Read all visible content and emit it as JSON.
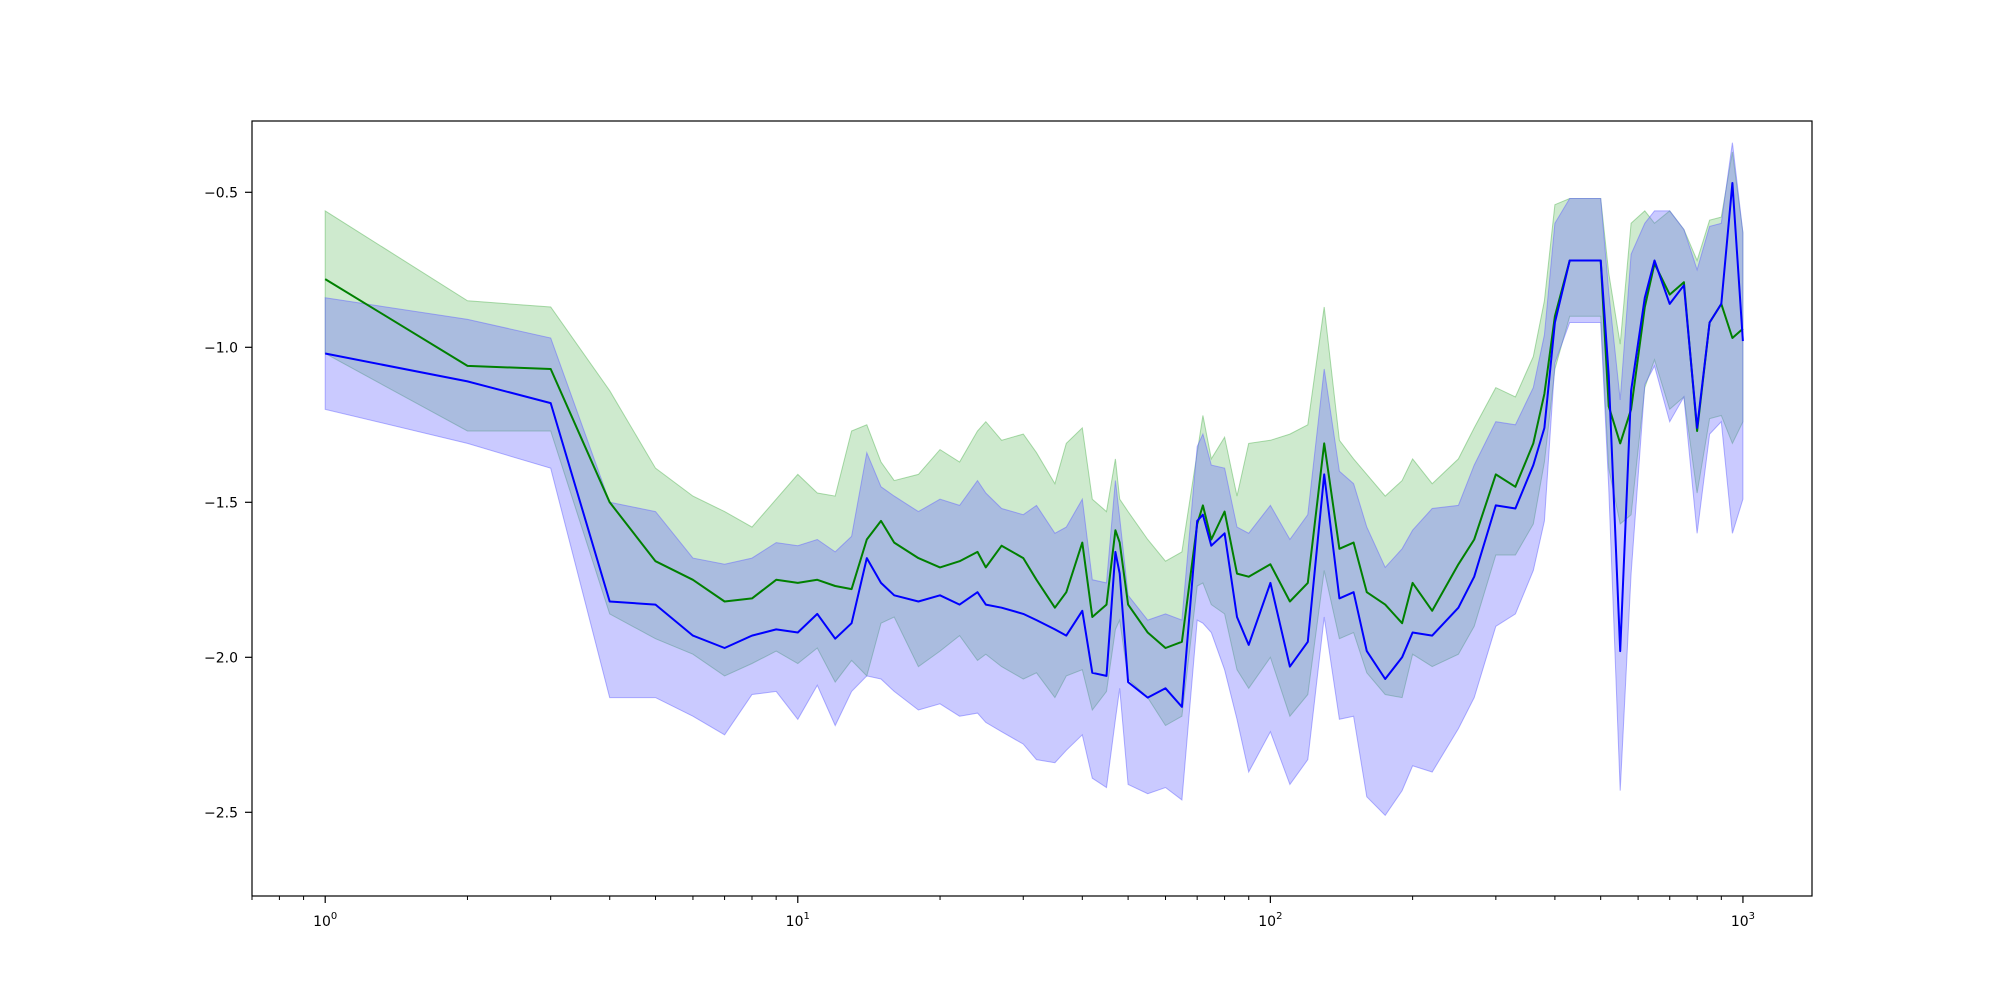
{
  "chart_data": {
    "type": "line",
    "title": "",
    "xlabel": "",
    "ylabel": "",
    "xscale": "log",
    "xlim": [
      0.7,
      1400
    ],
    "ylim": [
      -2.77,
      -0.27
    ],
    "grid": false,
    "legend": "none",
    "x_ticks": [
      {
        "value": 1,
        "base": "10",
        "exp": "0"
      },
      {
        "value": 10,
        "base": "10",
        "exp": "1"
      },
      {
        "value": 100,
        "base": "10",
        "exp": "2"
      },
      {
        "value": 1000,
        "base": "10",
        "exp": "3"
      }
    ],
    "y_ticks": [
      {
        "value": -0.5,
        "label": "−0.5"
      },
      {
        "value": -1.0,
        "label": "−1.0"
      },
      {
        "value": -1.5,
        "label": "−1.5"
      },
      {
        "value": -2.0,
        "label": "−2.0"
      },
      {
        "value": -2.5,
        "label": "−2.5"
      }
    ],
    "series": [
      {
        "color": "#008000",
        "band_color": "#5cb85c",
        "band_opacity": 0.3,
        "x": [
          1,
          2,
          3,
          4,
          5,
          6,
          7,
          8,
          9,
          10,
          11,
          12,
          13,
          14,
          15,
          16,
          18,
          20,
          22,
          24,
          25,
          27,
          30,
          32,
          35,
          37,
          40,
          42,
          45,
          47,
          48,
          50,
          55,
          60,
          65,
          70,
          72,
          75,
          80,
          85,
          90,
          100,
          110,
          120,
          130,
          140,
          150,
          160,
          175,
          190,
          200,
          220,
          250,
          270,
          300,
          330,
          360,
          380,
          400,
          430,
          470,
          500,
          520,
          550,
          580,
          620,
          650,
          700,
          750,
          800,
          850,
          900,
          950,
          1000
        ],
        "y": [
          -0.78,
          -1.06,
          -1.07,
          -1.5,
          -1.69,
          -1.75,
          -1.82,
          -1.81,
          -1.75,
          -1.76,
          -1.75,
          -1.77,
          -1.78,
          -1.62,
          -1.56,
          -1.63,
          -1.68,
          -1.71,
          -1.69,
          -1.66,
          -1.71,
          -1.64,
          -1.68,
          -1.75,
          -1.84,
          -1.79,
          -1.63,
          -1.87,
          -1.83,
          -1.59,
          -1.63,
          -1.83,
          -1.92,
          -1.97,
          -1.95,
          -1.57,
          -1.51,
          -1.62,
          -1.53,
          -1.73,
          -1.74,
          -1.7,
          -1.82,
          -1.76,
          -1.31,
          -1.65,
          -1.63,
          -1.79,
          -1.83,
          -1.89,
          -1.76,
          -1.85,
          -1.7,
          -1.62,
          -1.41,
          -1.45,
          -1.31,
          -1.15,
          -0.9,
          -0.72,
          -0.72,
          -0.72,
          -1.19,
          -1.31,
          -1.2,
          -0.87,
          -0.73,
          -0.83,
          -0.79,
          -1.27,
          -0.92,
          -0.86,
          -0.97,
          -0.94
        ],
        "upper": [
          -0.56,
          -0.85,
          -0.87,
          -1.14,
          -1.39,
          -1.48,
          -1.53,
          -1.58,
          -1.49,
          -1.41,
          -1.47,
          -1.48,
          -1.27,
          -1.25,
          -1.37,
          -1.43,
          -1.41,
          -1.33,
          -1.37,
          -1.27,
          -1.24,
          -1.3,
          -1.28,
          -1.34,
          -1.44,
          -1.31,
          -1.26,
          -1.49,
          -1.53,
          -1.36,
          -1.49,
          -1.53,
          -1.62,
          -1.69,
          -1.66,
          -1.34,
          -1.22,
          -1.36,
          -1.29,
          -1.48,
          -1.31,
          -1.3,
          -1.28,
          -1.25,
          -0.87,
          -1.3,
          -1.36,
          -1.41,
          -1.48,
          -1.43,
          -1.36,
          -1.44,
          -1.36,
          -1.26,
          -1.13,
          -1.16,
          -1.03,
          -0.85,
          -0.54,
          -0.52,
          -0.52,
          -0.52,
          -0.76,
          -0.99,
          -0.6,
          -0.56,
          -0.6,
          -0.56,
          -0.62,
          -0.72,
          -0.59,
          -0.58,
          -0.37,
          -0.63
        ],
        "lower": [
          -1.02,
          -1.27,
          -1.27,
          -1.86,
          -1.94,
          -1.99,
          -2.06,
          -2.02,
          -1.98,
          -2.02,
          -1.97,
          -2.08,
          -2.01,
          -2.06,
          -1.89,
          -1.87,
          -2.03,
          -1.98,
          -1.93,
          -2.01,
          -1.99,
          -2.03,
          -2.07,
          -2.05,
          -2.13,
          -2.06,
          -2.04,
          -2.17,
          -2.11,
          -1.91,
          -1.88,
          -2.07,
          -2.13,
          -2.22,
          -2.19,
          -1.77,
          -1.76,
          -1.83,
          -1.86,
          -2.04,
          -2.1,
          -2.0,
          -2.19,
          -2.12,
          -1.72,
          -1.94,
          -1.92,
          -2.05,
          -2.12,
          -2.13,
          -1.99,
          -2.03,
          -1.99,
          -1.9,
          -1.67,
          -1.67,
          -1.57,
          -1.37,
          -1.07,
          -0.9,
          -0.9,
          -0.9,
          -1.39,
          -1.57,
          -1.54,
          -1.13,
          -1.04,
          -1.2,
          -1.16,
          -1.47,
          -1.23,
          -1.22,
          -1.31,
          -1.24
        ]
      },
      {
        "color": "#0000ff",
        "band_color": "#6666ff",
        "band_opacity": 0.35,
        "x": [
          1,
          2,
          3,
          4,
          5,
          6,
          7,
          8,
          9,
          10,
          11,
          12,
          13,
          14,
          15,
          16,
          18,
          20,
          22,
          24,
          25,
          27,
          30,
          32,
          35,
          37,
          40,
          42,
          45,
          47,
          48,
          50,
          55,
          60,
          65,
          70,
          72,
          75,
          80,
          85,
          90,
          100,
          110,
          120,
          130,
          140,
          150,
          160,
          175,
          190,
          200,
          220,
          250,
          270,
          300,
          330,
          360,
          380,
          400,
          430,
          470,
          500,
          520,
          550,
          580,
          620,
          650,
          700,
          750,
          800,
          850,
          900,
          950,
          1000
        ],
        "y": [
          -1.02,
          -1.11,
          -1.18,
          -1.82,
          -1.83,
          -1.93,
          -1.97,
          -1.93,
          -1.91,
          -1.92,
          -1.86,
          -1.94,
          -1.89,
          -1.68,
          -1.76,
          -1.8,
          -1.82,
          -1.8,
          -1.83,
          -1.79,
          -1.83,
          -1.84,
          -1.86,
          -1.88,
          -1.91,
          -1.93,
          -1.85,
          -2.05,
          -2.06,
          -1.66,
          -1.73,
          -2.08,
          -2.13,
          -2.1,
          -2.16,
          -1.56,
          -1.54,
          -1.64,
          -1.6,
          -1.87,
          -1.96,
          -1.76,
          -2.03,
          -1.95,
          -1.41,
          -1.81,
          -1.79,
          -1.98,
          -2.07,
          -2.0,
          -1.92,
          -1.93,
          -1.84,
          -1.74,
          -1.51,
          -1.52,
          -1.38,
          -1.26,
          -0.92,
          -0.72,
          -0.72,
          -0.72,
          -1.09,
          -1.98,
          -1.14,
          -0.84,
          -0.72,
          -0.86,
          -0.8,
          -1.26,
          -0.92,
          -0.86,
          -0.47,
          -0.98
        ],
        "upper": [
          -0.84,
          -0.91,
          -0.97,
          -1.5,
          -1.53,
          -1.68,
          -1.7,
          -1.68,
          -1.63,
          -1.64,
          -1.62,
          -1.66,
          -1.61,
          -1.34,
          -1.45,
          -1.48,
          -1.53,
          -1.49,
          -1.51,
          -1.43,
          -1.47,
          -1.52,
          -1.54,
          -1.51,
          -1.6,
          -1.58,
          -1.49,
          -1.75,
          -1.76,
          -1.43,
          -1.55,
          -1.8,
          -1.88,
          -1.86,
          -1.88,
          -1.32,
          -1.28,
          -1.38,
          -1.39,
          -1.58,
          -1.6,
          -1.51,
          -1.62,
          -1.54,
          -1.07,
          -1.4,
          -1.44,
          -1.58,
          -1.71,
          -1.65,
          -1.59,
          -1.52,
          -1.51,
          -1.38,
          -1.24,
          -1.25,
          -1.13,
          -0.96,
          -0.6,
          -0.52,
          -0.52,
          -0.52,
          -0.82,
          -1.17,
          -0.7,
          -0.6,
          -0.56,
          -0.56,
          -0.62,
          -0.75,
          -0.61,
          -0.6,
          -0.34,
          -0.63
        ],
        "lower": [
          -1.2,
          -1.31,
          -1.39,
          -2.13,
          -2.13,
          -2.19,
          -2.25,
          -2.12,
          -2.11,
          -2.2,
          -2.09,
          -2.22,
          -2.11,
          -2.06,
          -2.07,
          -2.11,
          -2.17,
          -2.15,
          -2.19,
          -2.18,
          -2.21,
          -2.24,
          -2.28,
          -2.33,
          -2.34,
          -2.3,
          -2.25,
          -2.39,
          -2.42,
          -2.2,
          -2.1,
          -2.41,
          -2.44,
          -2.42,
          -2.46,
          -1.88,
          -1.89,
          -1.92,
          -2.04,
          -2.2,
          -2.37,
          -2.24,
          -2.41,
          -2.33,
          -1.87,
          -2.2,
          -2.19,
          -2.45,
          -2.51,
          -2.43,
          -2.35,
          -2.37,
          -2.23,
          -2.13,
          -1.9,
          -1.86,
          -1.72,
          -1.56,
          -1.05,
          -0.92,
          -0.92,
          -0.92,
          -1.45,
          -2.43,
          -1.73,
          -1.12,
          -1.06,
          -1.24,
          -1.16,
          -1.6,
          -1.28,
          -1.24,
          -1.6,
          -1.49
        ]
      }
    ]
  }
}
